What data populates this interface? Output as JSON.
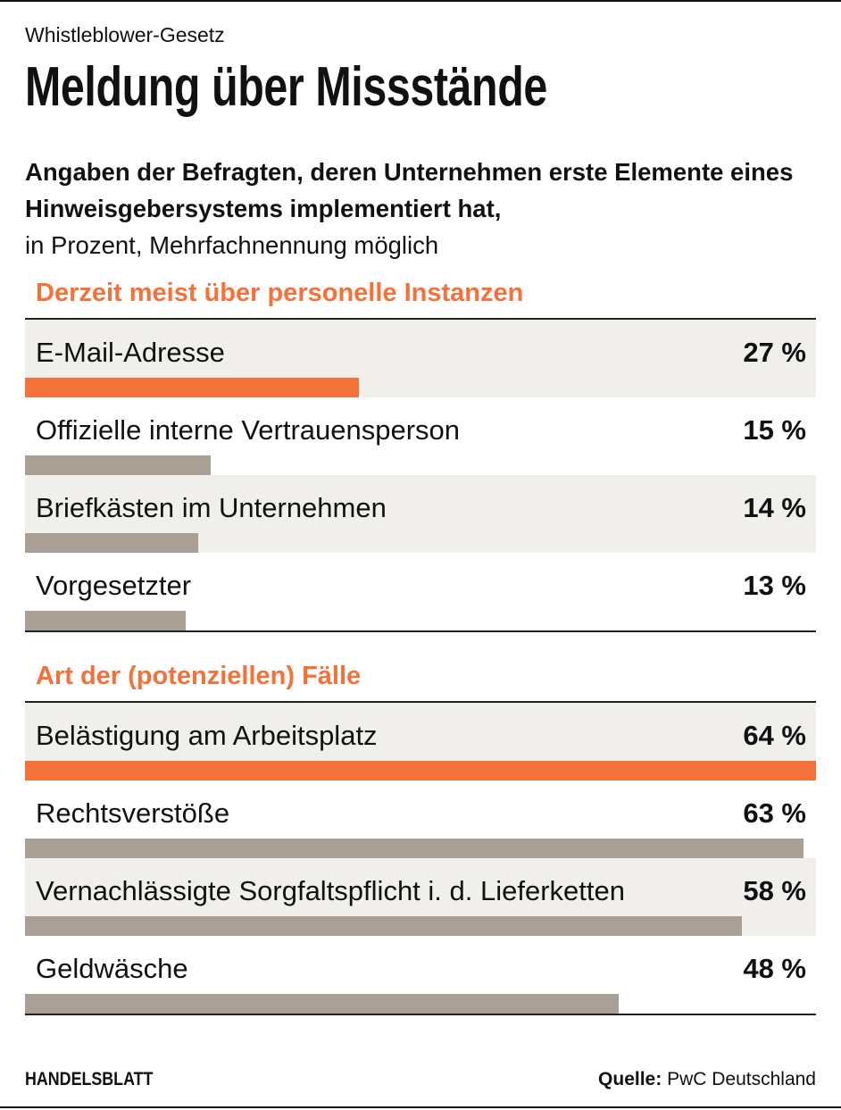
{
  "kicker": "Whistleblower-Gesetz",
  "title": "Meldung über Missstände",
  "subtitle_bold": "Angaben der Befragten, deren Unternehmen erste Elemente eines Hinweisgebersystems implementiert hat,",
  "subtitle_regular": "in Prozent, Mehrfachnennung möglich",
  "brand": "HANDELSBLATT",
  "source_label": "Quelle:",
  "source_value": "PwC Deutschland",
  "colors": {
    "highlight": "#f5713a",
    "bar": "#aa9f94",
    "row_alt": "#f0efec"
  },
  "chart_data": [
    {
      "type": "bar",
      "orientation": "horizontal",
      "title": "Derzeit meist über personelle Instanzen",
      "unit": "%",
      "categories": [
        "E-Mail-Adresse",
        "Offizielle interne Vertrauensperson",
        "Briefkästen im Unternehmen",
        "Vorgesetzter"
      ],
      "values": [
        27,
        15,
        14,
        13
      ],
      "labels": [
        "27 %",
        "15 %",
        "14 %",
        "13 %"
      ],
      "highlight_index": 0,
      "xlim": [
        0,
        64
      ]
    },
    {
      "type": "bar",
      "orientation": "horizontal",
      "title": "Art der (potenziellen) Fälle",
      "unit": "%",
      "categories": [
        "Belästigung am Arbeitsplatz",
        "Rechtsverstöße",
        "Vernachlässigte Sorgfaltspflicht i. d. Lieferketten",
        "Geldwäsche"
      ],
      "values": [
        64,
        63,
        58,
        48
      ],
      "labels": [
        "64 %",
        "63 %",
        "58 %",
        "48 %"
      ],
      "highlight_index": 0,
      "xlim": [
        0,
        64
      ]
    }
  ]
}
